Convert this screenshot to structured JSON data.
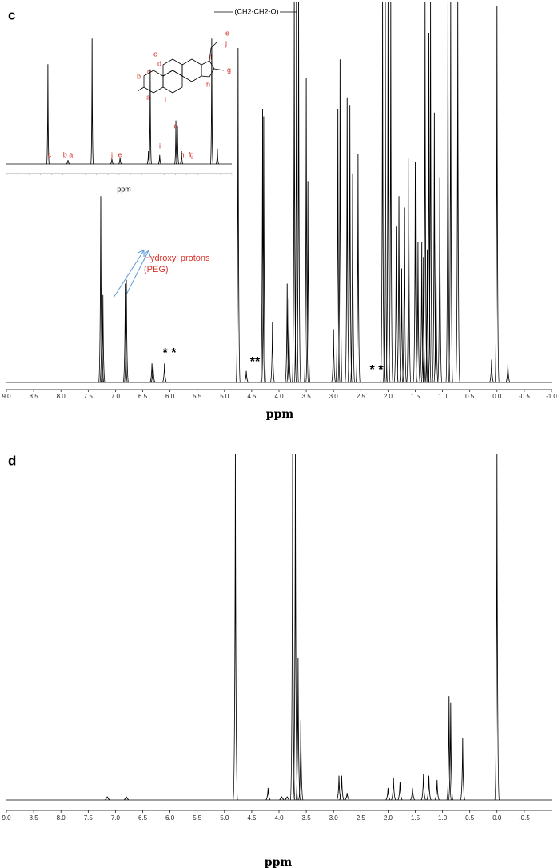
{
  "chart_data": [
    {
      "type": "spectrum",
      "panel": "c",
      "x_label": "ppm",
      "xlim": [
        9.0,
        -1.0
      ],
      "ylim": [
        0,
        100
      ],
      "xticks": [
        {
          "value": 9.0,
          "label": "9.0"
        },
        8.5,
        {
          "value": 8.0,
          "label": "8.0"
        },
        7.5,
        {
          "value": 7.0,
          "label": "7.0"
        },
        6.5,
        {
          "value": 6.0,
          "label": "6.0"
        },
        5.5,
        {
          "value": 5.0,
          "label": "5.0"
        },
        4.5,
        {
          "value": 4.0,
          "label": "4.0"
        },
        3.5,
        {
          "value": 3.0,
          "label": "3.0"
        },
        2.5,
        {
          "value": 2.0,
          "label": "2.0"
        },
        1.5,
        {
          "value": 1.0,
          "label": "1.0"
        },
        0.5,
        {
          "value": 0.0,
          "label": "0.0"
        },
        -0.5,
        {
          "value": -1.0,
          "label": "-1.0"
        }
      ],
      "x": [
        7.27,
        7.25,
        7.23,
        6.82,
        6.8,
        6.33,
        6.31,
        6.1,
        4.75,
        4.6,
        4.3,
        4.28,
        4.12,
        3.85,
        3.82,
        3.72,
        3.68,
        3.64,
        3.5,
        3.47,
        3.0,
        2.92,
        2.88,
        2.75,
        2.7,
        2.65,
        2.55,
        2.1,
        2.05,
        2.0,
        1.95,
        1.85,
        1.8,
        1.75,
        1.7,
        1.62,
        1.5,
        1.45,
        1.38,
        1.35,
        1.32,
        1.28,
        1.25,
        1.22,
        1.15,
        1.12,
        1.05,
        0.9,
        0.85,
        0.72,
        0.1,
        0.0,
        -0.2
      ],
      "values": [
        49,
        20,
        23,
        26,
        27,
        5,
        5,
        5,
        88,
        3,
        72,
        70,
        16,
        26,
        22,
        100,
        100,
        100,
        80,
        53,
        14,
        72,
        85,
        75,
        73,
        55,
        60,
        100,
        100,
        100,
        100,
        41,
        49,
        30,
        46,
        59,
        58,
        37,
        37,
        33,
        100,
        35,
        92,
        100,
        71,
        37,
        54,
        100,
        100,
        100,
        6,
        99,
        5
      ],
      "annotations": [
        "(CH2-CH2-O)",
        "Hydroxyl protons",
        "(PEG)",
        "* *",
        "**",
        "* *"
      ]
    },
    {
      "type": "spectrum",
      "x_label": "ppm",
      "xlim": [
        9.0,
        -1.0
      ],
      "ylim": [
        0,
        100
      ],
      "x": [
        7.16,
        6.27,
        5.2,
        4.32,
        3.96,
        2.7,
        2.62,
        2.2,
        1.48,
        1.41,
        1.23,
        -0.11,
        -0.36
      ],
      "values": [
        78,
        3,
        98,
        4,
        5,
        10,
        74,
        7,
        34,
        30,
        10,
        98,
        12
      ],
      "peak_labels": [
        "c",
        "b a",
        "j",
        "e",
        "i",
        "d",
        "h",
        "f",
        "g"
      ],
      "peak_label_x": [
        7.09,
        6.27,
        4.32,
        3.96,
        2.19,
        1.48,
        1.2,
        0.88,
        0.77
      ],
      "structure_labels": [
        "e",
        "d",
        "c",
        "b",
        "a",
        "i",
        "f",
        "g",
        "h",
        "j",
        "e"
      ]
    },
    {
      "type": "spectrum",
      "panel": "d",
      "x_label": "ppm",
      "xlim": [
        9.0,
        -1.0
      ],
      "ylim": [
        0,
        100
      ],
      "xticks": [
        {
          "value": 9.0,
          "label": "9.0"
        },
        8.5,
        {
          "value": 8.0,
          "label": "8.0"
        },
        7.5,
        {
          "value": 7.0,
          "label": "7.0"
        },
        6.5,
        {
          "value": 6.0,
          "label": "6.0"
        },
        5.5,
        {
          "value": 5.0,
          "label": "5.0"
        },
        4.5,
        {
          "value": 4.0,
          "label": "4.0"
        },
        3.5,
        {
          "value": 3.0,
          "label": "3.0"
        },
        2.5,
        {
          "value": 2.0,
          "label": "2.0"
        },
        1.5,
        {
          "value": 1.0,
          "label": "1.0"
        },
        0.5,
        {
          "value": 0.0,
          "label": "0.0"
        },
        -0.5
      ],
      "x": [
        7.15,
        6.8,
        4.8,
        4.2,
        3.95,
        3.85,
        3.75,
        3.7,
        3.65,
        3.6,
        2.9,
        2.85,
        2.75,
        2.0,
        1.9,
        1.78,
        1.55,
        1.35,
        1.25,
        1.1,
        0.88,
        0.85,
        0.63,
        0.0
      ],
      "values": [
        1,
        1,
        100,
        3.5,
        1,
        1,
        100,
        100,
        41,
        23,
        7,
        7,
        2,
        3.5,
        6.5,
        5.3,
        3.5,
        7.4,
        7,
        5.8,
        30,
        28,
        18,
        100
      ]
    }
  ]
}
